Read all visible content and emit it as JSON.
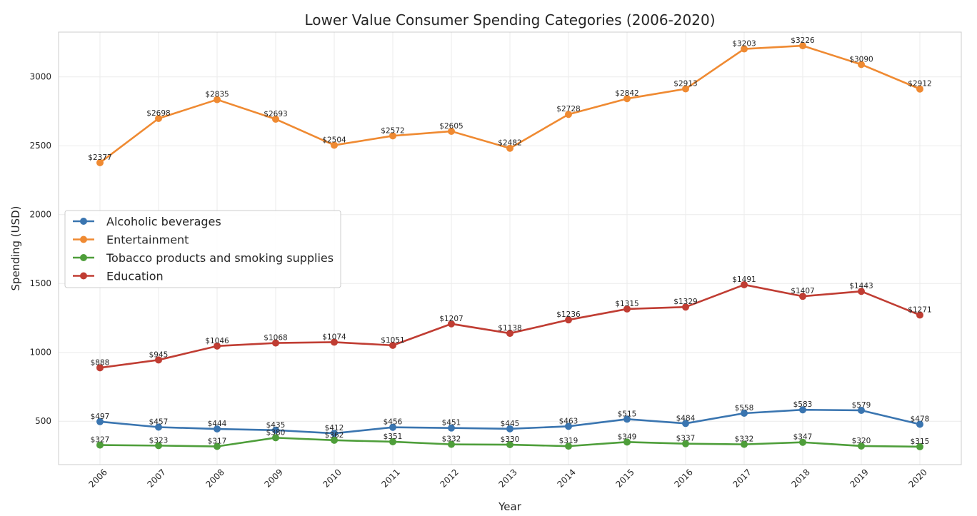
{
  "chart_data": {
    "type": "line",
    "title": "Lower Value Consumer Spending Categories (2006-2020)",
    "xlabel": "Year",
    "ylabel": "Spending (USD)",
    "x": [
      "2006",
      "2007",
      "2008",
      "2009",
      "2010",
      "2011",
      "2012",
      "2013",
      "2014",
      "2015",
      "2016",
      "2017",
      "2018",
      "2019",
      "2020"
    ],
    "ylim": [
      185,
      3325
    ],
    "yticks": [
      500,
      1000,
      1500,
      2000,
      2500,
      3000
    ],
    "grid": true,
    "legend_position": "center-left",
    "data_label_prefix": "$",
    "series": [
      {
        "name": "Alcoholic beverages",
        "color": "#3a75b0",
        "values": [
          497,
          457,
          444,
          435,
          412,
          456,
          451,
          445,
          463,
          515,
          484,
          558,
          583,
          579,
          478
        ]
      },
      {
        "name": "Entertainment",
        "color": "#ef8a32",
        "values": [
          2377,
          2698,
          2835,
          2693,
          2504,
          2572,
          2605,
          2482,
          2728,
          2842,
          2913,
          3203,
          3226,
          3090,
          2912
        ]
      },
      {
        "name": "Tobacco products and smoking supplies",
        "color": "#4e9e3a",
        "values": [
          327,
          323,
          317,
          380,
          362,
          351,
          332,
          330,
          319,
          349,
          337,
          332,
          347,
          320,
          315
        ]
      },
      {
        "name": "Education",
        "color": "#c03d33",
        "values": [
          888,
          945,
          1046,
          1068,
          1074,
          1051,
          1207,
          1138,
          1236,
          1315,
          1329,
          1491,
          1407,
          1443,
          1271
        ]
      }
    ]
  }
}
